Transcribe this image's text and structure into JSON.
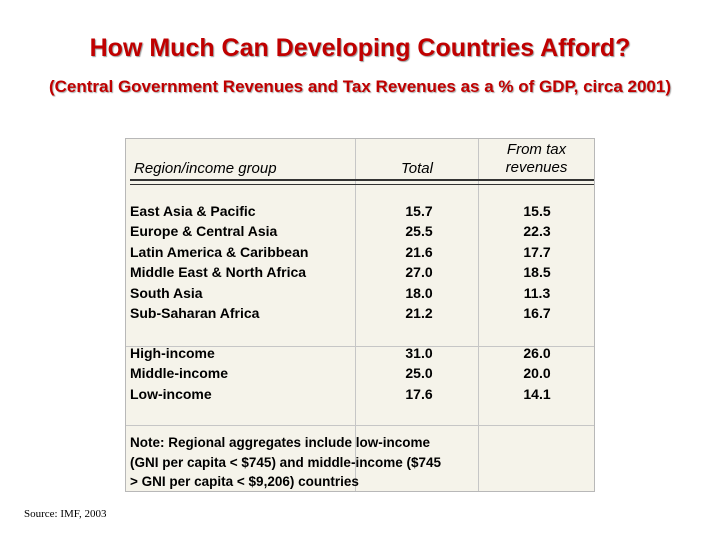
{
  "slide": {
    "title": "How Much Can Developing Countries Afford?",
    "subtitle": "(Central Government Revenues and Tax Revenues as a % of GDP, circa 2001)",
    "source": "Source: IMF, 2003"
  },
  "table": {
    "headers": {
      "region": "Region/income group",
      "total": "Total",
      "tax_line1": "From tax",
      "tax_line2": "revenues"
    },
    "regions": [
      {
        "name": "East Asia & Pacific",
        "total": "15.7",
        "tax": "15.5"
      },
      {
        "name": "Europe & Central Asia",
        "total": "25.5",
        "tax": "22.3"
      },
      {
        "name": "Latin America & Caribbean",
        "total": "21.6",
        "tax": "17.7"
      },
      {
        "name": "Middle East & North Africa",
        "total": "27.0",
        "tax": "18.5"
      },
      {
        "name": "South Asia",
        "total": "18.0",
        "tax": "11.3"
      },
      {
        "name": "Sub-Saharan Africa",
        "total": "21.2",
        "tax": "16.7"
      }
    ],
    "income_groups": [
      {
        "name": "High-income",
        "total": "31.0",
        "tax": "26.0"
      },
      {
        "name": "Middle-income",
        "total": "25.0",
        "tax": "20.0"
      },
      {
        "name": "Low-income",
        "total": "17.6",
        "tax": "14.1"
      }
    ],
    "note_lines": [
      "Note: Regional aggregates include low-income",
      "(GNI per capita < $745) and middle-income ($745",
      "> GNI per capita < $9,206) countries"
    ]
  }
}
